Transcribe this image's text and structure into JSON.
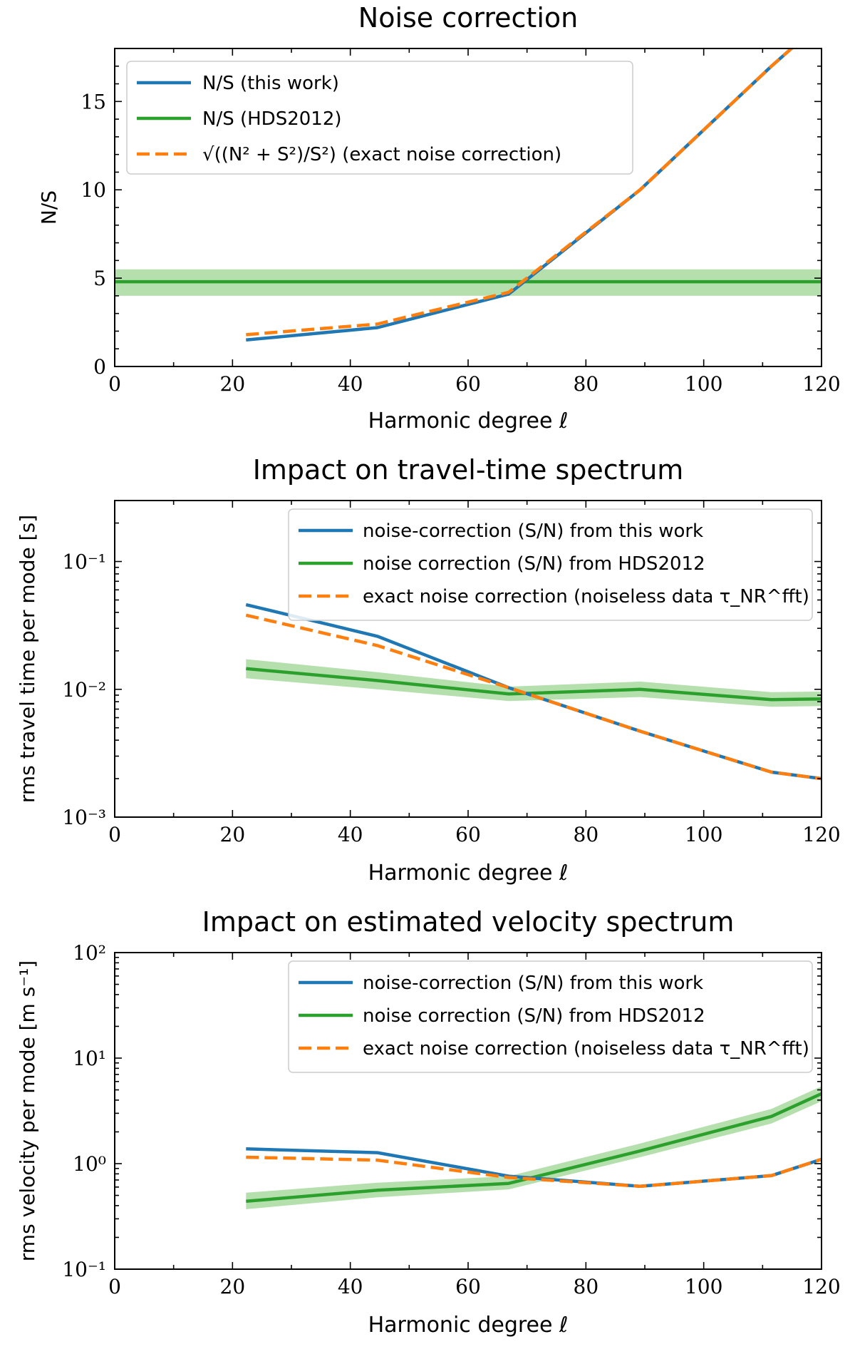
{
  "colors": {
    "blue": "#1f77b4",
    "green": "#2ca02c",
    "orange": "#ff7f0e",
    "band": "#a8dba0"
  },
  "chart_data": [
    {
      "type": "line",
      "title": "Noise correction",
      "xlabel": "Harmonic degree ℓ",
      "ylabel": "N/S",
      "xlim": [
        0,
        120
      ],
      "ylim": [
        0,
        18
      ],
      "yscale": "linear",
      "xticks": [
        0,
        20,
        40,
        60,
        80,
        100,
        120
      ],
      "yticks": [
        0,
        5,
        10,
        15
      ],
      "ytick_labels": [
        "0",
        "5",
        "10",
        "15"
      ],
      "legend_placement": "upper-left",
      "series": [
        {
          "name": "N/S (this work)",
          "color": "blue",
          "style": "solid",
          "x": [
            22.3,
            44.6,
            66.9,
            89.2,
            111.5,
            120
          ],
          "y": [
            1.5,
            2.2,
            4.1,
            10.0,
            17.0,
            19.5
          ]
        },
        {
          "name": "N/S (HDS2012)",
          "color": "green",
          "style": "solid",
          "x": [
            0,
            120
          ],
          "y": [
            4.8,
            4.8
          ],
          "band_low": [
            4.0,
            4.0
          ],
          "band_high": [
            5.5,
            5.5
          ]
        },
        {
          "name": "√((N² + S²)/S²) (exact noise correction)",
          "color": "orange",
          "style": "dashed",
          "x": [
            22.3,
            44.6,
            66.9,
            89.2,
            111.5,
            120
          ],
          "y": [
            1.8,
            2.4,
            4.2,
            10.0,
            17.0,
            19.5
          ]
        }
      ]
    },
    {
      "type": "line",
      "title": "Impact on travel-time spectrum",
      "xlabel": "Harmonic degree ℓ",
      "ylabel": "rms travel time per mode [s]",
      "xlim": [
        0,
        120
      ],
      "ylim": [
        0.001,
        0.3
      ],
      "yscale": "log",
      "xticks": [
        0,
        20,
        40,
        60,
        80,
        100,
        120
      ],
      "yticks": [
        0.001,
        0.01,
        0.1
      ],
      "ytick_labels": [
        "10⁻³",
        "10⁻²",
        "10⁻¹"
      ],
      "legend_placement": "upper-right",
      "series": [
        {
          "name": "noise-correction (S/N) from this work",
          "color": "blue",
          "style": "solid",
          "x": [
            22.3,
            44.6,
            66.9,
            89.2,
            111.5,
            120
          ],
          "y": [
            0.046,
            0.026,
            0.0103,
            0.0047,
            0.00225,
            0.002
          ]
        },
        {
          "name": "noise correction (S/N) from HDS2012",
          "color": "green",
          "style": "solid",
          "x": [
            22.3,
            44.6,
            66.9,
            89.2,
            111.5,
            120
          ],
          "y": [
            0.0145,
            0.0117,
            0.0092,
            0.01,
            0.0083,
            0.0084
          ],
          "band_low": [
            0.0122,
            0.01,
            0.0081,
            0.0087,
            0.0073,
            0.0074
          ],
          "band_high": [
            0.0172,
            0.0136,
            0.0105,
            0.0115,
            0.0095,
            0.0096
          ]
        },
        {
          "name": "exact noise correction (noiseless data τ_NR^fft)",
          "color": "orange",
          "style": "dashed",
          "x": [
            22.3,
            44.6,
            66.9,
            89.2,
            111.5,
            120
          ],
          "y": [
            0.038,
            0.022,
            0.0103,
            0.0047,
            0.00225,
            0.002
          ]
        }
      ]
    },
    {
      "type": "line",
      "title": "Impact on estimated velocity spectrum",
      "xlabel": "Harmonic degree ℓ",
      "ylabel": "rms velocity per mode [m s⁻¹]",
      "xlim": [
        0,
        120
      ],
      "ylim": [
        0.1,
        100
      ],
      "yscale": "log",
      "xticks": [
        0,
        20,
        40,
        60,
        80,
        100,
        120
      ],
      "yticks": [
        0.1,
        1,
        10,
        100
      ],
      "ytick_labels": [
        "10⁻¹",
        "10⁰",
        "10¹",
        "10²"
      ],
      "legend_placement": "upper-right",
      "series": [
        {
          "name": "noise-correction (S/N) from this work",
          "color": "blue",
          "style": "solid",
          "x": [
            22.3,
            44.6,
            66.9,
            89.2,
            111.5,
            120
          ],
          "y": [
            1.38,
            1.27,
            0.76,
            0.61,
            0.77,
            1.1
          ]
        },
        {
          "name": "noise correction (S/N) from HDS2012",
          "color": "green",
          "style": "solid",
          "x": [
            22.3,
            44.6,
            66.9,
            89.2,
            111.5,
            120
          ],
          "y": [
            0.44,
            0.56,
            0.65,
            1.32,
            2.8,
            4.6
          ],
          "band_low": [
            0.37,
            0.48,
            0.57,
            1.15,
            2.4,
            3.9
          ],
          "band_high": [
            0.53,
            0.66,
            0.76,
            1.55,
            3.3,
            5.4
          ]
        },
        {
          "name": "exact noise correction (noiseless data τ_NR^fft)",
          "color": "orange",
          "style": "dashed",
          "x": [
            22.3,
            44.6,
            66.9,
            89.2,
            111.5,
            120
          ],
          "y": [
            1.15,
            1.08,
            0.74,
            0.61,
            0.77,
            1.1
          ]
        }
      ]
    }
  ]
}
